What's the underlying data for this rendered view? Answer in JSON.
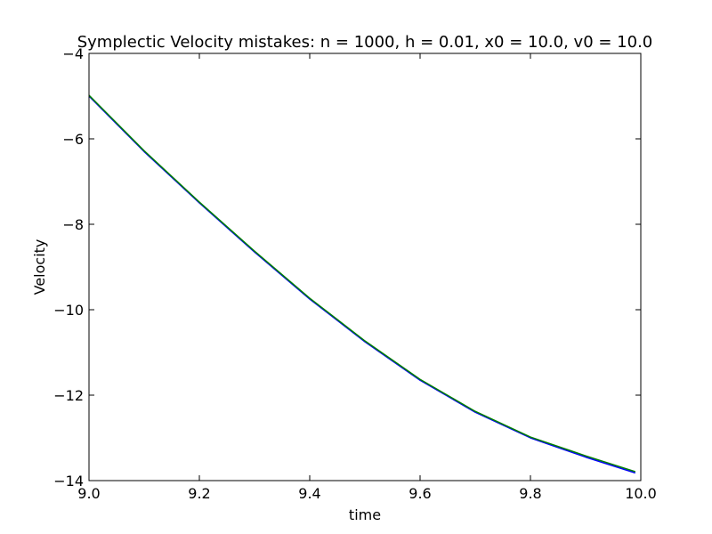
{
  "chart_data": {
    "type": "line",
    "title": "Symplectic Velocity mistakes: n = 1000,  h = 0.01,  x0 = 10.0,  v0 = 10.0",
    "xlabel": "time",
    "ylabel": "Velocity",
    "xlim": [
      9.0,
      10.0
    ],
    "ylim": [
      -14,
      -4
    ],
    "xticks": [
      9.0,
      9.2,
      9.4,
      9.6,
      9.8,
      10.0
    ],
    "xtick_labels": [
      "9.0",
      "9.2",
      "9.4",
      "9.6",
      "9.8",
      "10.0"
    ],
    "yticks": [
      -14,
      -12,
      -10,
      -8,
      -6,
      -4
    ],
    "ytick_labels": [
      "−14",
      "−12",
      "−10",
      "−8",
      "−6",
      "−4"
    ],
    "grid": false,
    "legend": false,
    "series": [
      {
        "color": "#0000ff",
        "x": [
          9.0,
          9.1,
          9.2,
          9.3,
          9.4,
          9.5,
          9.6,
          9.7,
          9.8,
          9.9,
          9.99
        ],
        "y": [
          -5.0,
          -6.3,
          -7.5,
          -8.65,
          -9.75,
          -10.75,
          -11.65,
          -12.4,
          -13.0,
          -13.45,
          -13.82
        ]
      },
      {
        "color": "#008000",
        "x": [
          9.0,
          9.1,
          9.2,
          9.3,
          9.4,
          9.5,
          9.6,
          9.7,
          9.8,
          9.9,
          9.99
        ],
        "y": [
          -4.98,
          -6.28,
          -7.48,
          -8.63,
          -9.73,
          -10.73,
          -11.63,
          -12.38,
          -12.98,
          -13.42,
          -13.79
        ]
      }
    ]
  }
}
